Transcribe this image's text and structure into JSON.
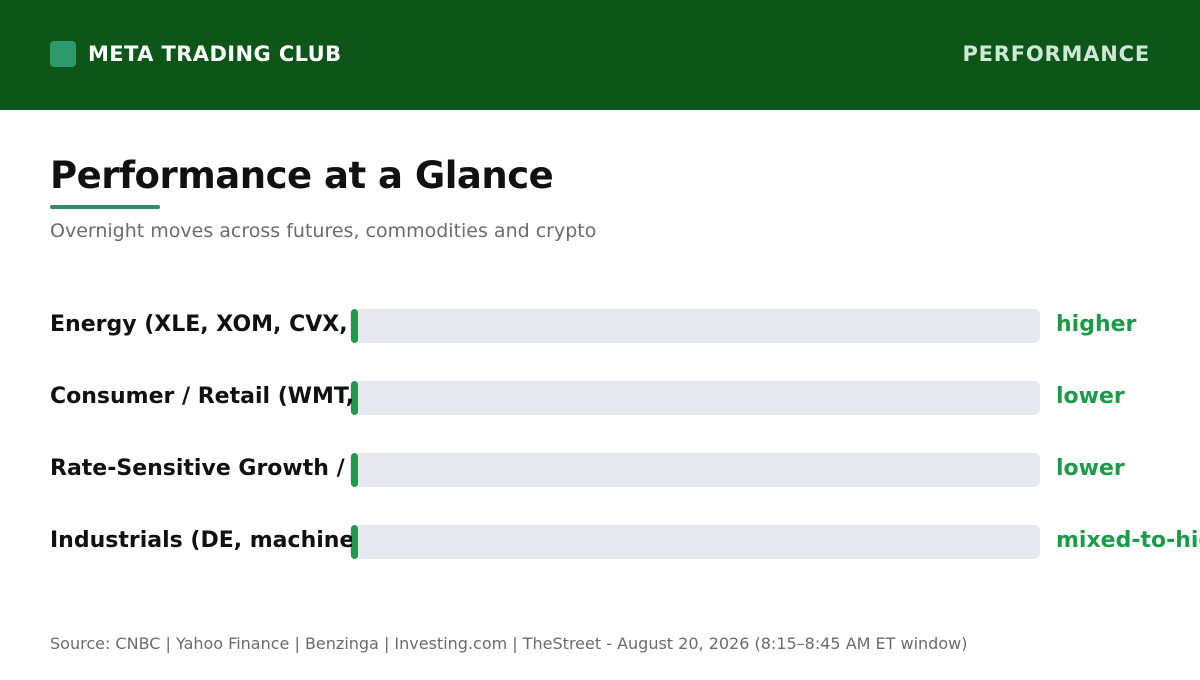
{
  "header": {
    "brand": "META TRADING CLUB",
    "section": "PERFORMANCE"
  },
  "colors": {
    "header_bg": "#0d5518",
    "brand_square": "#2e9a6c",
    "accent_green": "#1f9a4a",
    "track_bg": "#e5e8ec"
  },
  "chart_data": {
    "type": "bar",
    "title": "Performance at a Glance",
    "subtitle": "Overnight moves across futures, commodities and crypto",
    "categories": [
      "Energy (XLE, XOM, CVX, o",
      "Consumer / Retail (WMT, T",
      "Rate-Sensitive Growth / Bi",
      "Industrials (DE, machinery"
    ],
    "values": [
      "higher",
      "lower",
      "lower",
      "mixed-to-hig"
    ],
    "orientation": "horizontal",
    "legend": "none",
    "grid": false
  },
  "footer": {
    "source": "Source: CNBC | Yahoo Finance | Benzinga | Investing.com | TheStreet - August 20, 2026 (8:15–8:45 AM ET window)"
  }
}
